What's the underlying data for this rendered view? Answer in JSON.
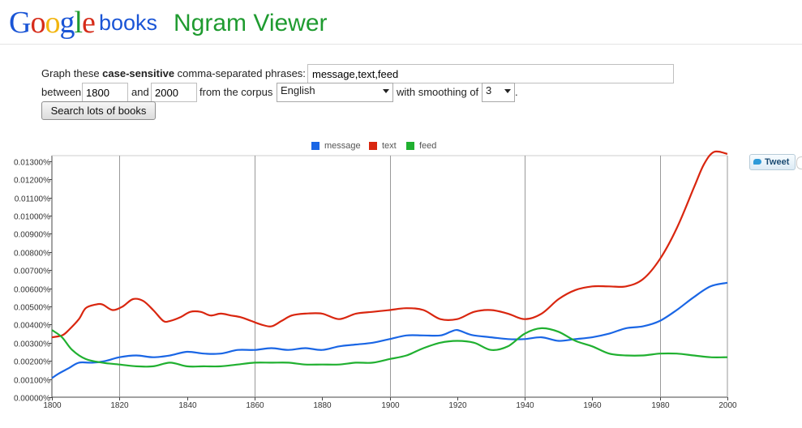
{
  "header": {
    "logo_letters": [
      {
        "ch": "G",
        "color": "#1a55d6"
      },
      {
        "ch": "o",
        "color": "#d62c1a"
      },
      {
        "ch": "o",
        "color": "#f2b50f"
      },
      {
        "ch": "g",
        "color": "#1a55d6"
      },
      {
        "ch": "l",
        "color": "#1f9b30"
      },
      {
        "ch": "e",
        "color": "#d62c1a"
      }
    ],
    "logo_suffix": "books",
    "title": "Ngram Viewer"
  },
  "form": {
    "prefix": "Graph these ",
    "bold": "case-sensitive",
    "suffix": " comma-separated phrases:",
    "phrases_value": "message,text,feed",
    "between_label": "between",
    "year_start": "1800",
    "and_label": "and",
    "year_end": "2000",
    "corpus_label": "from the corpus",
    "corpus_value": "English",
    "smoothing_label": "with smoothing of",
    "smoothing_value": "3",
    "period": ".",
    "search_button": "Search lots of books"
  },
  "tweet_button": {
    "label": "Tweet",
    "icon": "twitter-bird-icon"
  },
  "chart_data": {
    "type": "line",
    "x_label_ticks": [
      1800,
      1820,
      1840,
      1860,
      1880,
      1900,
      1920,
      1940,
      1960,
      1980,
      2000
    ],
    "x_range": [
      1800,
      2000
    ],
    "y_range": [
      0,
      0.0133
    ],
    "y_ticks": [
      "0.00000%",
      "0.00100%",
      "0.00200%",
      "0.00300%",
      "0.00400%",
      "0.00500%",
      "0.00600%",
      "0.00700%",
      "0.00800%",
      "0.00900%",
      "0.01000%",
      "0.01100%",
      "0.01200%",
      "0.01300%"
    ],
    "y_tick_values": [
      0,
      0.001,
      0.002,
      0.003,
      0.004,
      0.005,
      0.006,
      0.007,
      0.008,
      0.009,
      0.01,
      0.011,
      0.012,
      0.013
    ],
    "grid": true,
    "legend_position": "top",
    "series": [
      {
        "name": "message",
        "color": "#1a66e5",
        "x": [
          1800,
          1802,
          1805,
          1808,
          1812,
          1816,
          1820,
          1825,
          1830,
          1835,
          1840,
          1845,
          1850,
          1855,
          1860,
          1865,
          1870,
          1875,
          1880,
          1885,
          1890,
          1895,
          1900,
          1905,
          1910,
          1915,
          1918,
          1920,
          1923,
          1925,
          1930,
          1935,
          1940,
          1945,
          1950,
          1955,
          1960,
          1965,
          1970,
          1975,
          1980,
          1985,
          1990,
          1995,
          2000
        ],
        "values": [
          0.00105,
          0.0013,
          0.0016,
          0.0019,
          0.0019,
          0.002,
          0.0022,
          0.0023,
          0.0022,
          0.0023,
          0.0025,
          0.0024,
          0.0024,
          0.0026,
          0.0026,
          0.0027,
          0.0026,
          0.0027,
          0.0026,
          0.0028,
          0.0029,
          0.003,
          0.0032,
          0.0034,
          0.0034,
          0.0034,
          0.0036,
          0.0037,
          0.0035,
          0.0034,
          0.0033,
          0.0032,
          0.0032,
          0.0033,
          0.0031,
          0.0032,
          0.0033,
          0.0035,
          0.0038,
          0.0039,
          0.0042,
          0.0048,
          0.0055,
          0.0061,
          0.0063
        ]
      },
      {
        "name": "text",
        "color": "#d9260f",
        "x": [
          1800,
          1803,
          1805,
          1808,
          1810,
          1813,
          1815,
          1818,
          1821,
          1824,
          1827,
          1830,
          1833,
          1835,
          1838,
          1841,
          1844,
          1847,
          1850,
          1853,
          1856,
          1859,
          1862,
          1865,
          1868,
          1871,
          1875,
          1880,
          1885,
          1890,
          1895,
          1900,
          1905,
          1910,
          1915,
          1920,
          1925,
          1930,
          1935,
          1940,
          1945,
          1950,
          1955,
          1960,
          1965,
          1970,
          1975,
          1980,
          1985,
          1990,
          1993,
          1996,
          2000
        ],
        "values": [
          0.0033,
          0.0034,
          0.0037,
          0.0043,
          0.0049,
          0.0051,
          0.0051,
          0.0048,
          0.005,
          0.0054,
          0.0053,
          0.0048,
          0.0042,
          0.0042,
          0.0044,
          0.0047,
          0.0047,
          0.0045,
          0.0046,
          0.0045,
          0.0044,
          0.0042,
          0.004,
          0.0039,
          0.0042,
          0.0045,
          0.0046,
          0.0046,
          0.0043,
          0.0046,
          0.0047,
          0.0048,
          0.0049,
          0.0048,
          0.0043,
          0.0043,
          0.0047,
          0.0048,
          0.0046,
          0.0043,
          0.0046,
          0.0054,
          0.0059,
          0.0061,
          0.0061,
          0.0061,
          0.0065,
          0.0076,
          0.0093,
          0.0115,
          0.0128,
          0.0135,
          0.0134
        ]
      },
      {
        "name": "feed",
        "color": "#20b030",
        "x": [
          1800,
          1803,
          1806,
          1810,
          1815,
          1820,
          1825,
          1830,
          1835,
          1840,
          1845,
          1850,
          1855,
          1860,
          1865,
          1870,
          1875,
          1880,
          1885,
          1890,
          1895,
          1900,
          1905,
          1910,
          1915,
          1920,
          1925,
          1930,
          1935,
          1940,
          1945,
          1950,
          1955,
          1960,
          1965,
          1970,
          1975,
          1980,
          1985,
          1990,
          1995,
          2000
        ],
        "values": [
          0.0037,
          0.0033,
          0.0026,
          0.0021,
          0.0019,
          0.0018,
          0.0017,
          0.0017,
          0.0019,
          0.0017,
          0.0017,
          0.0017,
          0.0018,
          0.0019,
          0.0019,
          0.0019,
          0.0018,
          0.0018,
          0.0018,
          0.0019,
          0.0019,
          0.0021,
          0.0023,
          0.0027,
          0.003,
          0.0031,
          0.003,
          0.0026,
          0.0028,
          0.0035,
          0.0038,
          0.0036,
          0.0031,
          0.0028,
          0.0024,
          0.0023,
          0.0023,
          0.0024,
          0.0024,
          0.0023,
          0.0022,
          0.0022
        ]
      }
    ]
  }
}
